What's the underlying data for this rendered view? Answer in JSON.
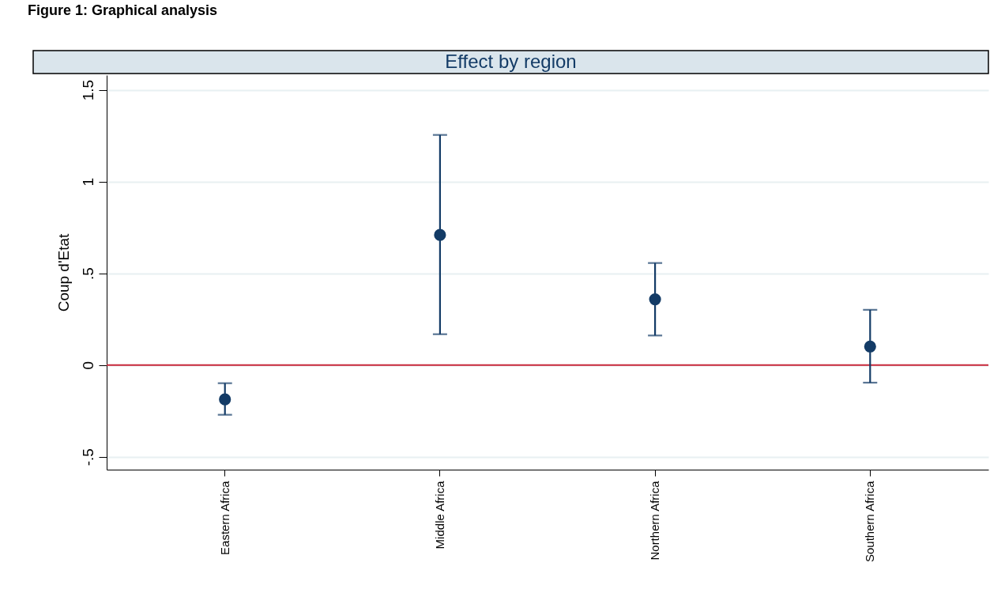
{
  "chart_data": {
    "type": "scatter",
    "title": "Figure 1: Graphical analysis",
    "subtitle": "Effect by region",
    "ylabel": "Coup d'Etat",
    "categories": [
      "Eastern Africa",
      "Middle Africa",
      "Northern Africa",
      "Southern Africa"
    ],
    "series": [
      {
        "color": "#133b66",
        "values": [
          -0.187,
          0.709,
          0.358,
          0.101
        ],
        "errors": [
          [
            -0.271,
            -0.099
          ],
          [
            0.168,
            1.254
          ],
          [
            0.161,
            0.556
          ],
          [
            -0.096,
            0.301
          ]
        ]
      }
    ],
    "marker": "circle",
    "ylim": [
      -0.57,
      1.58
    ],
    "yticks": [
      {
        "value": -0.5,
        "label": "-.5"
      },
      0,
      {
        "value": 0.5,
        "label": ".5"
      },
      1,
      {
        "value": 1.5,
        "label": "1.5"
      }
    ],
    "ref_lines": [
      {
        "axis": "y",
        "value": 0,
        "color": "#c8283a"
      }
    ],
    "grid": "y"
  }
}
